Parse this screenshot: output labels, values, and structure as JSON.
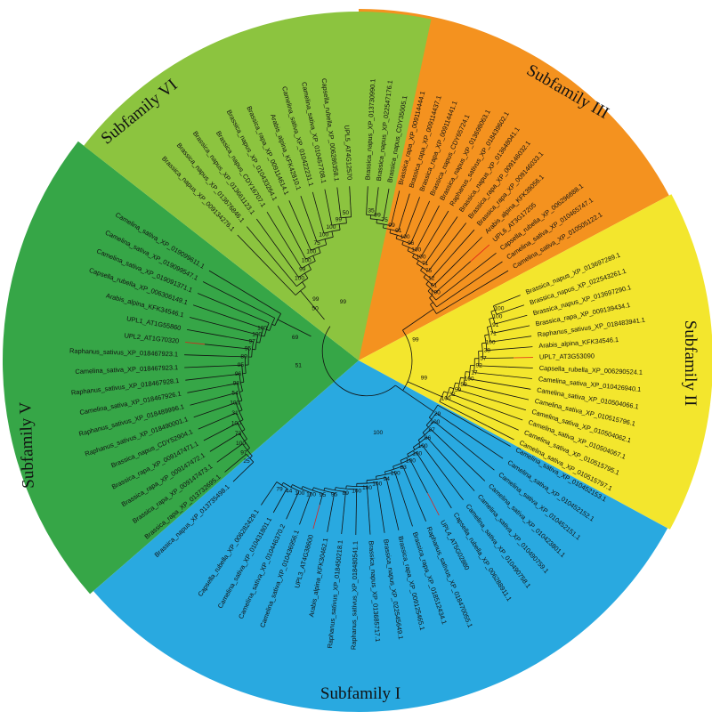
{
  "colors": {
    "subfamily_I": "#29a9e0",
    "subfamily_II": "#f3e62d",
    "subfamily_III": "#f4921f",
    "subfamily_V": "#36a647",
    "subfamily_VI": "#8cc43f",
    "highlight_branch": "#e0201a"
  },
  "subfamilies": [
    {
      "key": "I",
      "label": "Subfamily I",
      "color_key": "subfamily_I",
      "leaves": [
        "Capsella_rubella_XP_006282429.1",
        "Camelina_sativa_XP_010431801.1",
        "Camelina_sativa_XP_010446370.2",
        "Camelina_sativa_XP_010436956.1",
        "UPL3_AT4G38600",
        "Arabis_alpina_KFK30462.1",
        "Raphanus_sativus_XP_018450218.1",
        "Raphanus_sativus_XP_018480541.1",
        "Brassica_napus_XP_013685717.1",
        "Brassica_napus_XP_022545649.1",
        "Brassica_rapa_XP_009125465.1",
        "Brassica_rapa_XP_018512434.1",
        "Raphanus_sativus_XP_018470055.1",
        "UPL4_AT5G02880",
        "Capsella_rubella_XP_006288911.1",
        "Camelina_sativa_XP_010490758.1",
        "Camelina_sativa_XP_010490759.1",
        "Camelina_sativa_XP_010423801.1",
        "Camelina_sativa_XP_010452151.1",
        "Camelina_sativa_XP_010452152.1",
        "Camelina_sativa_XP_010452153.1"
      ],
      "red": [
        4,
        13
      ]
    },
    {
      "key": "II",
      "label": "Subfamily II",
      "color_key": "subfamily_II",
      "leaves": [
        "Brassica_napus_XP_013697289.1",
        "Brassica_napus_XP_022543261.1",
        "Brassica_napus_XP_013697290.1",
        "Brassica_rapa_XP_009139434.1",
        "Raphanus_sativus_XP_018483941.1",
        "Arabis_alpina_KFK34546.1",
        "UPL7_AT3G53090",
        "Capsella_rubella_XP_006290524.1",
        "Camelina_sativa_XP_010426940.1",
        "Camelina_sativa_XP_010504066.1",
        "Camelina_sativa_XP_010515796.1",
        "Camelina_sativa_XP_010504062.1",
        "Camelina_sativa_XP_010504067.1",
        "Camelina_sativa_XP_010515795.1",
        "Camelina_sativa_XP_010515797.1"
      ],
      "red": [
        6
      ]
    },
    {
      "key": "III",
      "label": "Subfamily III",
      "color_key": "subfamily_III",
      "leaves": [
        "Brassica_napus_XP_013730990.1",
        "Brassica_napus_XP_022547176.1",
        "Brassica_napus_CDY35005.1",
        "Brassica_rapa_XP_009114444.1",
        "Brassica_rapa_XP_009114437.1",
        "Brassica_rapa_XP_009114441.1",
        "Brassica_napus_CDY65724.1",
        "Brassica_napus_XP_013698063.1",
        "Raphanus_sativus_XP_018439602.1",
        "Brassica_napus_XP_013648041.1",
        "Brassica_rapa_XP_009146032.1",
        "Brassica_rapa_XP_009146033.1",
        "Arabis_alpina_KFK39056.1",
        "UPL6_AT3G17205",
        "Capsella_rubella_XP_006296888.1",
        "Camelina_sativa_XP_010465747.1",
        "Camelina_sativa_XP_010505122.1"
      ],
      "red": [
        13
      ]
    },
    {
      "key": "V",
      "label": "Subfamily V",
      "color_key": "subfamily_V",
      "leaves": [
        "Brassica_napus_XP_013735498.1",
        "Brassica_rapa_XP_013732695.1",
        "Brassica_rapa_XP_009147473.1",
        "Brassica_rapa_XP_009147472.1",
        "Brassica_rapa_XP_009147471.1",
        "Brassica_napus_CDY52904.1",
        "Raphanus_sativus_XP_018490001.1",
        "Raphanus_sativus_XP_018489996.1",
        "Camelina_sativa_XP_018467926.1",
        "Raphanus_sativus_XP_018467928.1",
        "Camelina_sativa_XP_018467923.1",
        "Raphanus_sativus_XP_018467923.1",
        "UPL2_AT1G70320",
        "UPL1_AT1G55860",
        "Arabis_alpina_KFK34546.1",
        "Capsella_rubella_XP_006306149.1",
        "Camelina_sativa_XP_019091371.1",
        "Camelina_sativa_XP_019099547.1",
        "Camelina_sativa_XP_019099611.1"
      ],
      "red": [
        12
      ]
    },
    {
      "key": "VI",
      "label": "Subfamily VI",
      "color_key": "subfamily_VI",
      "leaves": [
        "UPL5_AT4G12570",
        "Capsella_rubella_XP_006286358.1",
        "Camelina_sativa_XP_010457708.1",
        "Camelina_sativa_XP_010422231.1",
        "Arabis_alpina_KFK42810.1",
        "Brassica_rapa_XP_009114614.1",
        "Brassica_napus_XP_010433264.1",
        "Brassica_napus_CDY16707.1",
        "Brassica_napus_XP_013661123.1",
        "Brassica_napus_XP_013676846.1",
        "Brassica_napus_XP_009134276.1"
      ],
      "red": []
    }
  ],
  "bootstrap": {
    "I": [
      "79",
      "44",
      "100",
      "100",
      "95",
      "95",
      "89",
      "100",
      "100",
      "100",
      "94",
      "100",
      "83",
      "100",
      "100",
      "100",
      "96",
      "97",
      "100",
      "29"
    ],
    "II": [
      "100",
      "100",
      "91",
      "71",
      "100",
      "38",
      "57",
      "92",
      "17",
      "100",
      "59",
      "59",
      "32",
      "100"
    ],
    "III": [
      "35",
      "99",
      "75",
      "99",
      "91",
      "100",
      "96",
      "100",
      "100",
      "71",
      "75",
      "12",
      "61",
      "100"
    ],
    "V": [
      "25",
      "97",
      "100",
      "73",
      "100",
      "31",
      "100",
      "54",
      "98",
      "96",
      "95",
      "89",
      "95",
      "97",
      "100",
      "100"
    ],
    "VI": [
      "50",
      "99",
      "100",
      "100",
      "75",
      "100",
      "100",
      "99",
      "100"
    ],
    "backbone": [
      "99",
      "99",
      "100",
      "51",
      "69",
      "99",
      "99",
      "50"
    ]
  }
}
